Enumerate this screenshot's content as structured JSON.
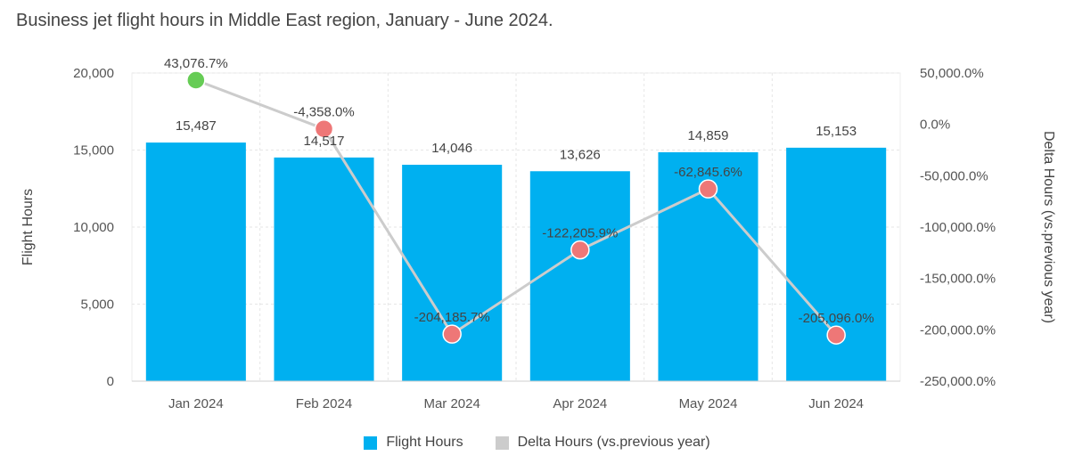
{
  "chart_data": {
    "type": "bar",
    "title": "Business jet flight hours in Middle East region, January - June 2024.",
    "categories": [
      "Jan 2024",
      "Feb 2024",
      "Mar 2024",
      "Apr 2024",
      "May 2024",
      "Jun 2024"
    ],
    "series": [
      {
        "name": "Flight Hours",
        "type": "bar",
        "axis": "left",
        "color": "#00b0f0",
        "values": [
          15487,
          14517,
          14046,
          13626,
          14859,
          15153
        ],
        "labels": [
          "15,487",
          "14,517",
          "14,046",
          "13,626",
          "14,859",
          "15,153"
        ]
      },
      {
        "name": "Delta Hours (vs.previous year)",
        "type": "line",
        "axis": "right",
        "color": "#cccccc",
        "values": [
          43076.7,
          -4358.0,
          -204185.7,
          -122205.9,
          -62845.6,
          -205096.0
        ],
        "labels": [
          "43,076.7%",
          "-4,358.0%",
          "-204,185.7%",
          "-122,205.9%",
          "-62,845.6%",
          "-205,096.0%"
        ],
        "marker_colors": [
          "#66cc55",
          "#ee7777",
          "#ee7777",
          "#ee7777",
          "#ee7777",
          "#ee7777"
        ]
      }
    ],
    "ylabel": "Flight Hours",
    "ylim": [
      0,
      20000
    ],
    "yticks": [
      "0",
      "5,000",
      "10,000",
      "15,000",
      "20,000"
    ],
    "y2label": "Delta Hours (vs.previous year)",
    "y2lim": [
      -250000,
      50000
    ],
    "y2ticks": [
      "-250,000.0%",
      "-200,000.0%",
      "-150,000.0%",
      "-100,000.0%",
      "-50,000.0%",
      "0.0%",
      "50,000.0%"
    ],
    "grid": true,
    "legend_position": "bottom"
  }
}
